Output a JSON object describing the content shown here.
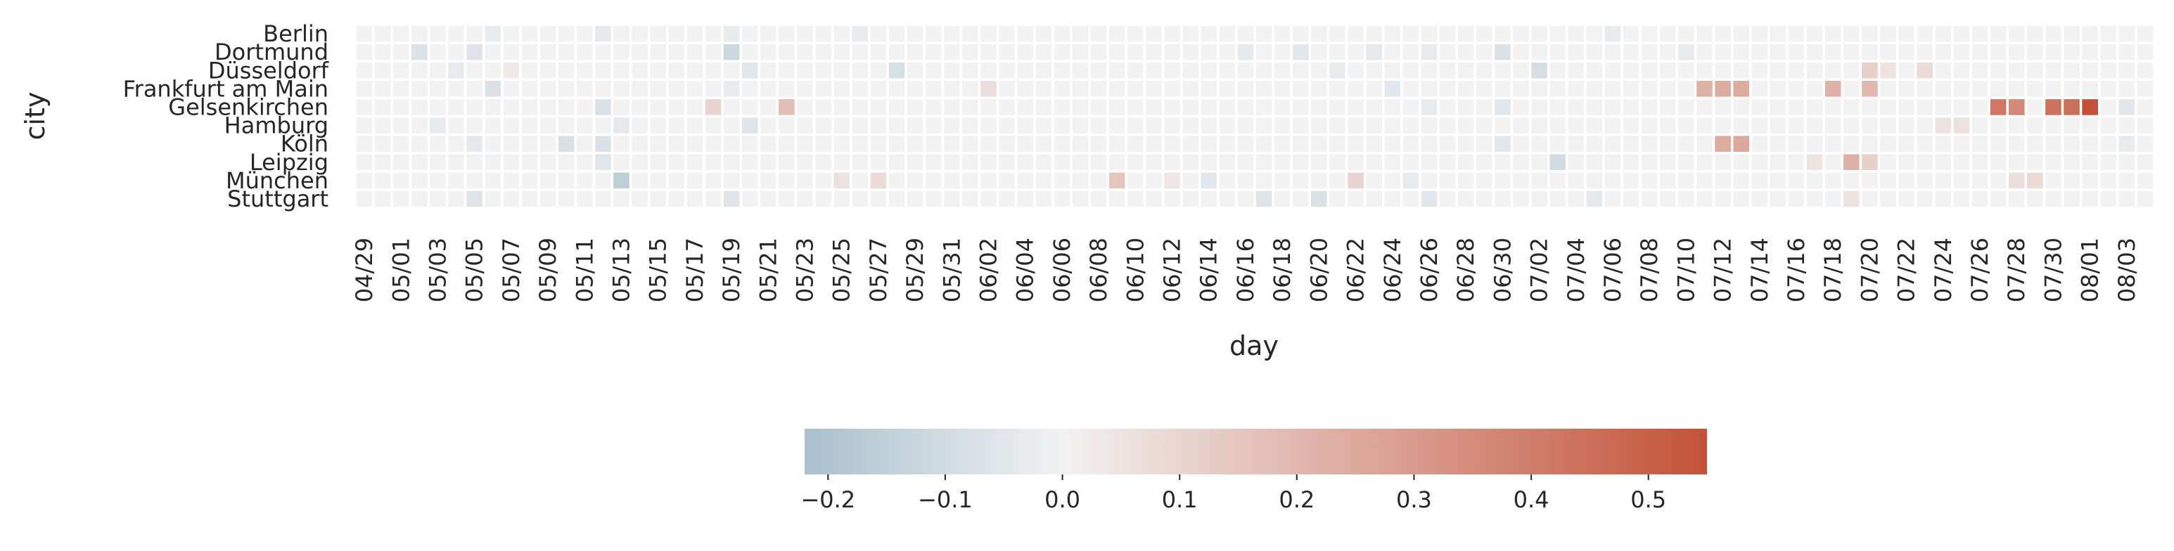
{
  "chart_data": {
    "type": "heatmap",
    "title": "",
    "xlabel": "day",
    "ylabel": "city",
    "rows": [
      "Berlin",
      "Dortmund",
      "Düsseldorf",
      "Frankfurt am Main",
      "Gelsenkirchen",
      "Hamburg",
      "Köln",
      "Leipzig",
      "München",
      "Stuttgart"
    ],
    "x_start": "2024-04-29",
    "x_end": "2024-08-04",
    "x_tick_labels": [
      "04/29",
      "05/01",
      "05/03",
      "05/05",
      "05/07",
      "05/09",
      "05/11",
      "05/13",
      "05/15",
      "05/17",
      "05/19",
      "05/21",
      "05/23",
      "05/25",
      "05/27",
      "05/29",
      "05/31",
      "06/02",
      "06/04",
      "06/06",
      "06/08",
      "06/10",
      "06/12",
      "06/14",
      "06/16",
      "06/18",
      "06/20",
      "06/22",
      "06/24",
      "06/26",
      "06/28",
      "06/30",
      "07/02",
      "07/04",
      "07/06",
      "07/08",
      "07/10",
      "07/12",
      "07/14",
      "07/16",
      "07/18",
      "07/20",
      "07/22",
      "07/24",
      "07/26",
      "07/28",
      "07/30",
      "08/01",
      "08/03"
    ],
    "default_value": 0.0,
    "cells": [
      {
        "city": "Berlin",
        "day": "2024-05-06",
        "value": -0.03
      },
      {
        "city": "Berlin",
        "day": "2024-05-12",
        "value": -0.04
      },
      {
        "city": "Berlin",
        "day": "2024-05-19",
        "value": -0.03
      },
      {
        "city": "Berlin",
        "day": "2024-05-26",
        "value": -0.03
      },
      {
        "city": "Berlin",
        "day": "2024-07-06",
        "value": -0.03
      },
      {
        "city": "Dortmund",
        "day": "2024-05-02",
        "value": -0.07
      },
      {
        "city": "Dortmund",
        "day": "2024-05-05",
        "value": -0.06
      },
      {
        "city": "Dortmund",
        "day": "2024-05-19",
        "value": -0.12
      },
      {
        "city": "Dortmund",
        "day": "2024-06-16",
        "value": -0.04
      },
      {
        "city": "Dortmund",
        "day": "2024-06-19",
        "value": -0.05
      },
      {
        "city": "Dortmund",
        "day": "2024-06-23",
        "value": -0.04
      },
      {
        "city": "Dortmund",
        "day": "2024-06-26",
        "value": -0.03
      },
      {
        "city": "Dortmund",
        "day": "2024-06-30",
        "value": -0.07
      },
      {
        "city": "Dortmund",
        "day": "2024-07-10",
        "value": -0.03
      },
      {
        "city": "Düsseldorf",
        "day": "2024-05-04",
        "value": -0.03
      },
      {
        "city": "Düsseldorf",
        "day": "2024-05-07",
        "value": 0.03
      },
      {
        "city": "Düsseldorf",
        "day": "2024-05-20",
        "value": -0.05
      },
      {
        "city": "Düsseldorf",
        "day": "2024-05-28",
        "value": -0.08
      },
      {
        "city": "Düsseldorf",
        "day": "2024-06-21",
        "value": -0.03
      },
      {
        "city": "Düsseldorf",
        "day": "2024-07-02",
        "value": -0.09
      },
      {
        "city": "Düsseldorf",
        "day": "2024-07-20",
        "value": 0.12
      },
      {
        "city": "Düsseldorf",
        "day": "2024-07-21",
        "value": 0.05
      },
      {
        "city": "Düsseldorf",
        "day": "2024-07-23",
        "value": 0.08
      },
      {
        "city": "Frankfurt am Main",
        "day": "2024-05-06",
        "value": -0.07
      },
      {
        "city": "Frankfurt am Main",
        "day": "2024-05-19",
        "value": -0.03
      },
      {
        "city": "Frankfurt am Main",
        "day": "2024-06-02",
        "value": 0.07
      },
      {
        "city": "Frankfurt am Main",
        "day": "2024-06-24",
        "value": -0.05
      },
      {
        "city": "Frankfurt am Main",
        "day": "2024-07-11",
        "value": 0.22
      },
      {
        "city": "Frankfurt am Main",
        "day": "2024-07-12",
        "value": 0.24
      },
      {
        "city": "Frankfurt am Main",
        "day": "2024-07-13",
        "value": 0.24
      },
      {
        "city": "Frankfurt am Main",
        "day": "2024-07-18",
        "value": 0.22
      },
      {
        "city": "Frankfurt am Main",
        "day": "2024-07-20",
        "value": 0.2
      },
      {
        "city": "Gelsenkirchen",
        "day": "2024-05-12",
        "value": -0.07
      },
      {
        "city": "Gelsenkirchen",
        "day": "2024-05-18",
        "value": 0.1
      },
      {
        "city": "Gelsenkirchen",
        "day": "2024-05-22",
        "value": 0.18
      },
      {
        "city": "Gelsenkirchen",
        "day": "2024-06-26",
        "value": -0.03
      },
      {
        "city": "Gelsenkirchen",
        "day": "2024-06-30",
        "value": -0.05
      },
      {
        "city": "Gelsenkirchen",
        "day": "2024-07-27",
        "value": 0.42
      },
      {
        "city": "Gelsenkirchen",
        "day": "2024-07-28",
        "value": 0.36
      },
      {
        "city": "Gelsenkirchen",
        "day": "2024-07-30",
        "value": 0.44
      },
      {
        "city": "Gelsenkirchen",
        "day": "2024-07-31",
        "value": 0.45
      },
      {
        "city": "Gelsenkirchen",
        "day": "2024-08-01",
        "value": 0.55
      },
      {
        "city": "Gelsenkirchen",
        "day": "2024-08-03",
        "value": -0.05
      },
      {
        "city": "Hamburg",
        "day": "2024-05-03",
        "value": -0.03
      },
      {
        "city": "Hamburg",
        "day": "2024-05-13",
        "value": -0.04
      },
      {
        "city": "Hamburg",
        "day": "2024-05-20",
        "value": -0.06
      },
      {
        "city": "Hamburg",
        "day": "2024-07-24",
        "value": 0.05
      },
      {
        "city": "Hamburg",
        "day": "2024-07-25",
        "value": 0.06
      },
      {
        "city": "Köln",
        "day": "2024-05-05",
        "value": -0.04
      },
      {
        "city": "Köln",
        "day": "2024-05-10",
        "value": -0.08
      },
      {
        "city": "Köln",
        "day": "2024-05-12",
        "value": -0.07
      },
      {
        "city": "Köln",
        "day": "2024-06-30",
        "value": -0.05
      },
      {
        "city": "Köln",
        "day": "2024-07-12",
        "value": 0.24
      },
      {
        "city": "Köln",
        "day": "2024-07-13",
        "value": 0.25
      },
      {
        "city": "Köln",
        "day": "2024-08-03",
        "value": -0.03
      },
      {
        "city": "Leipzig",
        "day": "2024-05-12",
        "value": -0.05
      },
      {
        "city": "Leipzig",
        "day": "2024-07-03",
        "value": -0.1
      },
      {
        "city": "Leipzig",
        "day": "2024-07-17",
        "value": 0.05
      },
      {
        "city": "Leipzig",
        "day": "2024-07-19",
        "value": 0.22
      },
      {
        "city": "Leipzig",
        "day": "2024-07-20",
        "value": 0.12
      },
      {
        "city": "München",
        "day": "2024-05-13",
        "value": -0.16
      },
      {
        "city": "München",
        "day": "2024-05-25",
        "value": 0.06
      },
      {
        "city": "München",
        "day": "2024-05-27",
        "value": 0.08
      },
      {
        "city": "München",
        "day": "2024-06-09",
        "value": 0.15
      },
      {
        "city": "München",
        "day": "2024-06-12",
        "value": 0.04
      },
      {
        "city": "München",
        "day": "2024-06-14",
        "value": -0.05
      },
      {
        "city": "München",
        "day": "2024-06-22",
        "value": 0.1
      },
      {
        "city": "München",
        "day": "2024-06-25",
        "value": -0.03
      },
      {
        "city": "München",
        "day": "2024-07-28",
        "value": 0.07
      },
      {
        "city": "München",
        "day": "2024-07-29",
        "value": 0.08
      },
      {
        "city": "Stuttgart",
        "day": "2024-05-05",
        "value": -0.06
      },
      {
        "city": "Stuttgart",
        "day": "2024-05-19",
        "value": -0.06
      },
      {
        "city": "Stuttgart",
        "day": "2024-06-17",
        "value": -0.06
      },
      {
        "city": "Stuttgart",
        "day": "2024-06-20",
        "value": -0.07
      },
      {
        "city": "Stuttgart",
        "day": "2024-06-26",
        "value": -0.05
      },
      {
        "city": "Stuttgart",
        "day": "2024-07-05",
        "value": -0.04
      },
      {
        "city": "Stuttgart",
        "day": "2024-07-19",
        "value": 0.05
      }
    ],
    "colorbar": {
      "min": -0.22,
      "max": 0.55,
      "ticks": [
        -0.2,
        -0.1,
        0.0,
        0.1,
        0.2,
        0.3,
        0.4,
        0.5
      ],
      "tick_labels": [
        "−0.2",
        "−0.1",
        "0.0",
        "0.1",
        "0.2",
        "0.3",
        "0.4",
        "0.5"
      ],
      "orientation": "horizontal",
      "placement": "bottom"
    },
    "colors": {
      "negative": "#a9c0cd",
      "neutral": "#f2f2f2",
      "positive": "#c35237"
    }
  }
}
